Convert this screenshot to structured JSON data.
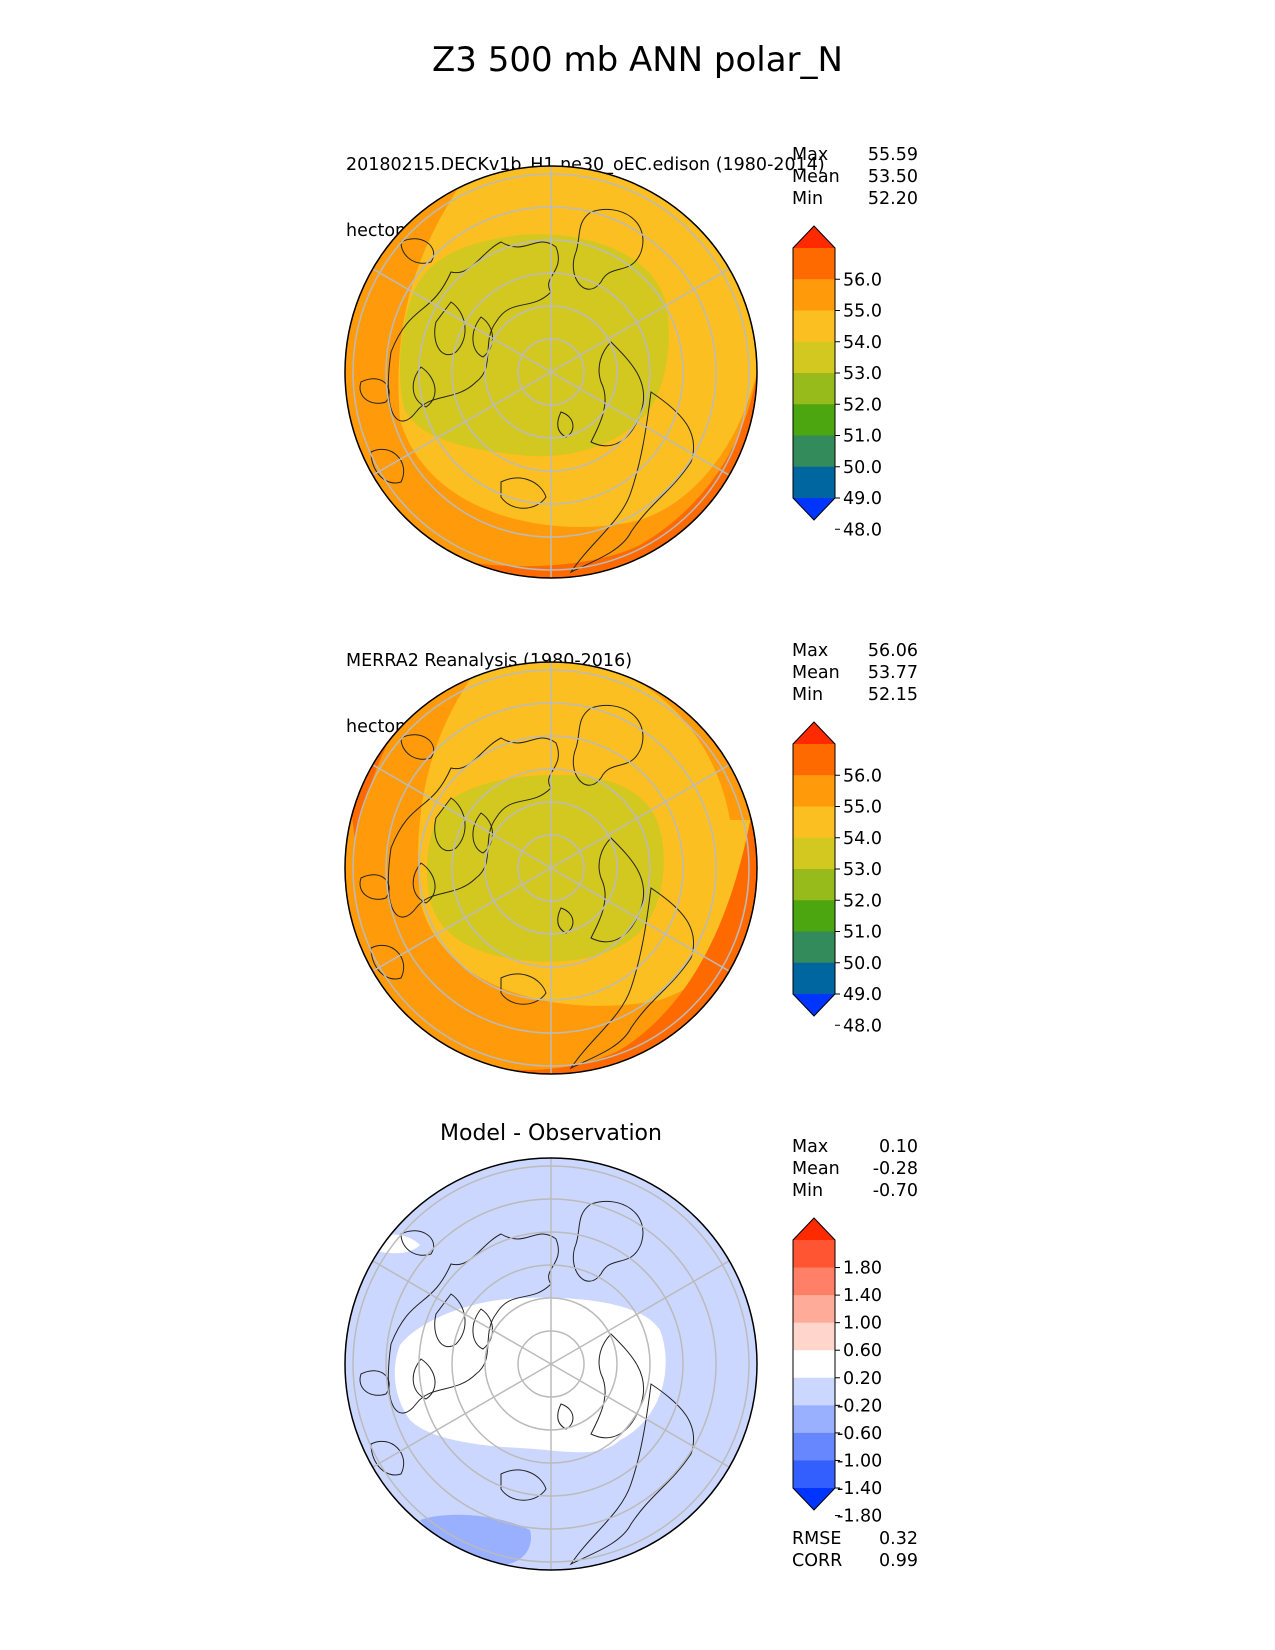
{
  "title": "Z3 500 mb ANN polar_N",
  "panels": [
    {
      "id": "test",
      "title_line1": "20180215.DECKv1b_H1.ne30_oEC.edison (1980-2014)",
      "title_line2": "hectometer",
      "stats": [
        {
          "label": "Max",
          "value": "55.59"
        },
        {
          "label": "Mean",
          "value": "53.50"
        },
        {
          "label": "Min",
          "value": "52.20"
        }
      ],
      "colorbar": {
        "ticks": [
          "56.0",
          "55.0",
          "54.0",
          "53.0",
          "52.0",
          "51.0",
          "50.0",
          "49.0",
          "48.0"
        ],
        "colors_top_to_bottom": [
          "#ff2a00",
          "#ff6a00",
          "#ff9a0a",
          "#fbbf21",
          "#d3c81f",
          "#96bb1a",
          "#4ba60f",
          "#338a5a",
          "#0066a0",
          "#0035ff"
        ]
      }
    },
    {
      "id": "ref",
      "title_line1": "MERRA2 Reanalysis (1980-2016)",
      "title_line2": "hectometer",
      "stats": [
        {
          "label": "Max",
          "value": "56.06"
        },
        {
          "label": "Mean",
          "value": "53.77"
        },
        {
          "label": "Min",
          "value": "52.15"
        }
      ],
      "colorbar": {
        "ticks": [
          "56.0",
          "55.0",
          "54.0",
          "53.0",
          "52.0",
          "51.0",
          "50.0",
          "49.0",
          "48.0"
        ],
        "colors_top_to_bottom": [
          "#ff2a00",
          "#ff6a00",
          "#ff9a0a",
          "#fbbf21",
          "#d3c81f",
          "#96bb1a",
          "#4ba60f",
          "#338a5a",
          "#0066a0",
          "#0035ff"
        ]
      }
    },
    {
      "id": "diff",
      "title": "Model - Observation",
      "stats": [
        {
          "label": "Max",
          "value": "0.10"
        },
        {
          "label": "Mean",
          "value": "-0.28"
        },
        {
          "label": "Min",
          "value": "-0.70"
        }
      ],
      "metrics": [
        {
          "label": "RMSE",
          "value": "0.32"
        },
        {
          "label": "CORR",
          "value": "0.99"
        }
      ],
      "colorbar": {
        "ticks": [
          "1.80",
          "1.40",
          "1.00",
          "0.60",
          "0.20",
          "-0.20",
          "-0.60",
          "-1.00",
          "-1.40",
          "-1.80"
        ],
        "colors_top_to_bottom": [
          "#ff2a00",
          "#ff5533",
          "#ff8066",
          "#ffab99",
          "#ffd5cc",
          "#ffffff",
          "#ccd7ff",
          "#99afff",
          "#6687ff",
          "#335fff",
          "#0035ff"
        ]
      }
    }
  ],
  "chart_data": [
    {
      "type": "heatmap",
      "projection": "north polar stereographic",
      "title": "20180215.DECKv1b_H1.ne30_oEC.edison (1980-2014)",
      "units": "hectometer",
      "levels": [
        48.0,
        49.0,
        50.0,
        51.0,
        52.0,
        53.0,
        54.0,
        55.0,
        56.0
      ],
      "max": 55.59,
      "mean": 53.5,
      "min": 52.2
    },
    {
      "type": "heatmap",
      "projection": "north polar stereographic",
      "title": "MERRA2 Reanalysis (1980-2016)",
      "units": "hectometer",
      "levels": [
        48.0,
        49.0,
        50.0,
        51.0,
        52.0,
        53.0,
        54.0,
        55.0,
        56.0
      ],
      "max": 56.06,
      "mean": 53.77,
      "min": 52.15
    },
    {
      "type": "heatmap",
      "projection": "north polar stereographic",
      "title": "Model - Observation",
      "levels": [
        -1.8,
        -1.4,
        -1.0,
        -0.6,
        -0.2,
        0.2,
        0.6,
        1.0,
        1.4,
        1.8
      ],
      "max": 0.1,
      "mean": -0.28,
      "min": -0.7,
      "rmse": 0.32,
      "corr": 0.99
    }
  ]
}
